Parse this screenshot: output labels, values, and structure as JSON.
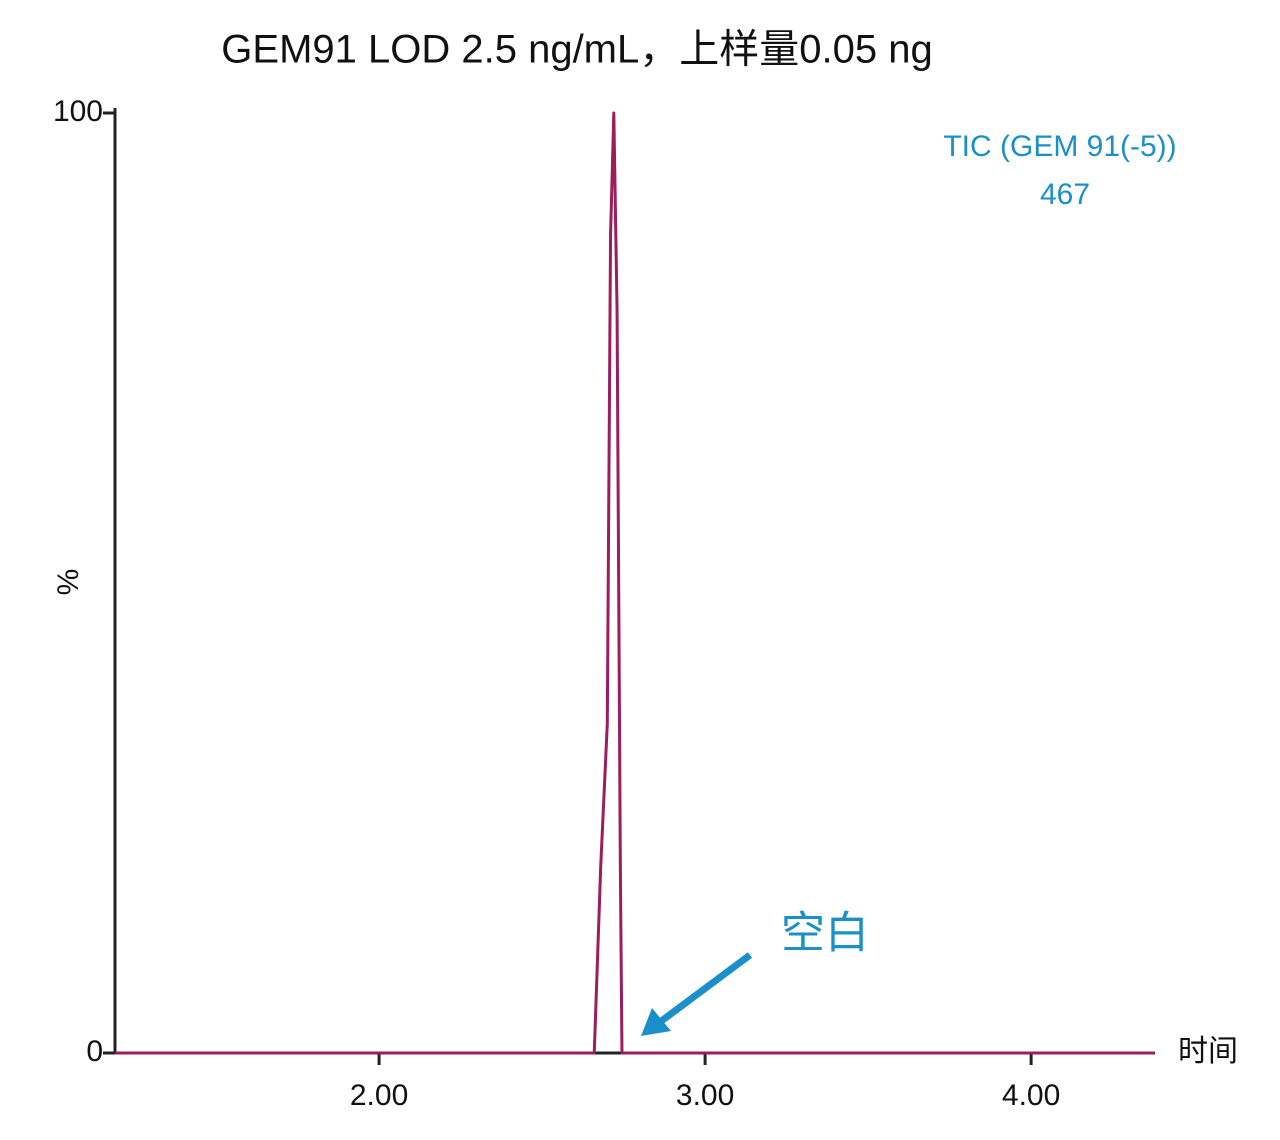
{
  "chart_data": {
    "type": "line",
    "title": "GEM91 LOD 2.5 ng/mL，上样量0.05 ng",
    "x_label": "时间",
    "y_label": "%",
    "annotations": [
      "TIC (GEM 91(-5))",
      "467",
      "空白"
    ],
    "x": [
      1.19,
      2.66,
      2.68,
      2.7,
      2.71,
      2.72,
      2.73,
      2.74,
      2.745,
      4.38
    ],
    "series": [
      {
        "name": "TIC",
        "color": "#9c1c5c",
        "values": [
          0,
          0,
          20,
          35,
          87,
          100,
          79,
          20,
          0,
          0
        ]
      }
    ],
    "xlim": [
      1.19,
      4.38
    ],
    "xticks": [
      {
        "value": 2,
        "label": "2.00"
      },
      {
        "value": 3,
        "label": "3.00"
      },
      {
        "value": 4,
        "label": "4.00"
      }
    ],
    "ylim": [
      0,
      100
    ],
    "yticks": [
      0,
      100
    ],
    "annotation_color": "#1a8fc9"
  }
}
